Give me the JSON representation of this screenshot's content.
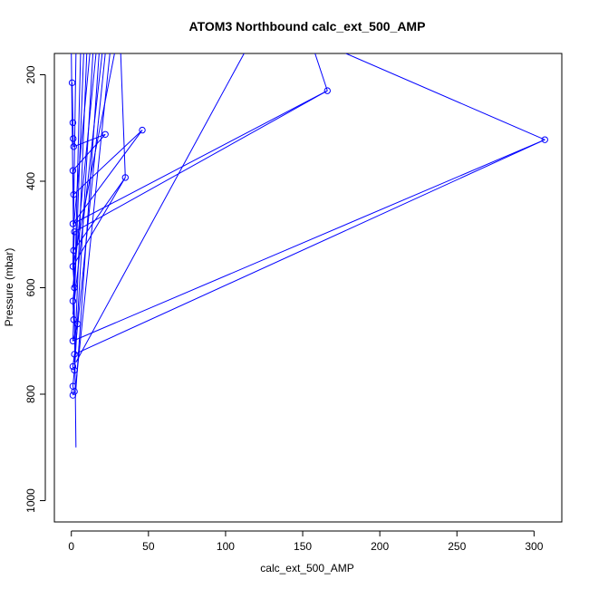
{
  "chart_data": {
    "type": "line",
    "title": "ATOM3 Northbound calc_ext_500_AMP",
    "xlabel": "calc_ext_500_AMP",
    "ylabel": "Pressure (mbar)",
    "xlim": [
      -11,
      318
    ],
    "ylim": [
      1040,
      160
    ],
    "y_reversed": true,
    "grid": false,
    "legend": "none",
    "x_ticks": [
      0,
      50,
      100,
      150,
      200,
      250,
      300
    ],
    "y_ticks": [
      200,
      400,
      600,
      800,
      1000
    ],
    "color": "#0000ff",
    "series": [
      {
        "values": [
          {
            "x": 0.5,
            "y": 215
          },
          {
            "x": 1.0,
            "y": 290
          },
          {
            "x": 1.2,
            "y": 320
          },
          {
            "x": 1.5,
            "y": 335
          },
          {
            "x": 22,
            "y": 312
          },
          {
            "x": 1.0,
            "y": 380
          },
          {
            "x": 1.5,
            "y": 425
          },
          {
            "x": 46,
            "y": 304
          },
          {
            "x": 1.0,
            "y": 480
          },
          {
            "x": 166,
            "y": 230
          },
          {
            "x": 2.0,
            "y": 495
          },
          {
            "x": 1.5,
            "y": 530
          },
          {
            "x": 35,
            "y": 393
          },
          {
            "x": 1.0,
            "y": 560
          },
          {
            "x": 2.0,
            "y": 600
          },
          {
            "x": 1.0,
            "y": 625
          },
          {
            "x": 1.5,
            "y": 660
          },
          {
            "x": 4.0,
            "y": 668
          },
          {
            "x": 1.0,
            "y": 700
          },
          {
            "x": 307,
            "y": 322
          },
          {
            "x": 2.0,
            "y": 725
          },
          {
            "x": 1.0,
            "y": 748
          },
          {
            "x": 2.0,
            "y": 755
          },
          {
            "x": 1.0,
            "y": 785
          },
          {
            "x": 2.0,
            "y": 795
          },
          {
            "x": 1.0,
            "y": 802
          }
        ]
      }
    ],
    "overflow_lines": [
      {
        "x": 0.0,
        "y": 160,
        "to_x": 3.0,
        "to_y": 900
      },
      {
        "x": 3.0,
        "y": 160,
        "to_x": 1.0,
        "to_y": 560
      },
      {
        "x": 6.0,
        "y": 160,
        "to_x": 2.0,
        "to_y": 620
      },
      {
        "x": 8.0,
        "y": 160,
        "to_x": 1.0,
        "to_y": 700
      },
      {
        "x": 10.0,
        "y": 160,
        "to_x": 2.0,
        "to_y": 740
      },
      {
        "x": 12.0,
        "y": 160,
        "to_x": 1.0,
        "to_y": 500
      },
      {
        "x": 14.0,
        "y": 160,
        "to_x": 2.0,
        "to_y": 760
      },
      {
        "x": 16.0,
        "y": 160,
        "to_x": 1.0,
        "to_y": 600
      },
      {
        "x": 18.0,
        "y": 160,
        "to_x": 3.0,
        "to_y": 790
      },
      {
        "x": 20.0,
        "y": 160,
        "to_x": 1.0,
        "to_y": 650
      },
      {
        "x": 22.0,
        "y": 160,
        "to_x": 2.0,
        "to_y": 730
      },
      {
        "x": 25.0,
        "y": 160,
        "to_x": 3.0,
        "to_y": 780
      },
      {
        "x": 28.0,
        "y": 160,
        "to_x": 1.0,
        "to_y": 560
      },
      {
        "x": 32.0,
        "y": 160,
        "to_x": 35.0,
        "to_y": 393
      },
      {
        "x": 112.0,
        "y": 160,
        "to_x": 3.0,
        "to_y": 740
      },
      {
        "x": 158.0,
        "y": 160,
        "to_x": 166.0,
        "to_y": 230
      },
      {
        "x": 178.0,
        "y": 160,
        "to_x": 307.0,
        "to_y": 322
      }
    ]
  }
}
